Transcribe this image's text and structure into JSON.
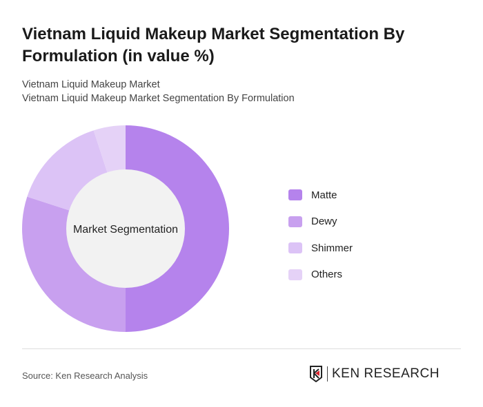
{
  "title": "Vietnam Liquid Makeup Market Segmentation By Formulation (in value %)",
  "subtitle1": "Vietnam Liquid Makeup Market",
  "subtitle2": "Vietnam Liquid Makeup Market Segmentation By Formulation",
  "source": "Source: Ken Research Analysis",
  "logo_text": "KEN RESEARCH",
  "chart_data": {
    "type": "pie",
    "variant": "donut",
    "center_label": "Market Segmentation",
    "categories": [
      "Matte",
      "Dewy",
      "Shimmer",
      "Others"
    ],
    "values": [
      50,
      30,
      15,
      5
    ],
    "colors": [
      "#b583ec",
      "#c8a0ef",
      "#dcc3f6",
      "#e5d2f7"
    ],
    "legend_position": "right"
  }
}
